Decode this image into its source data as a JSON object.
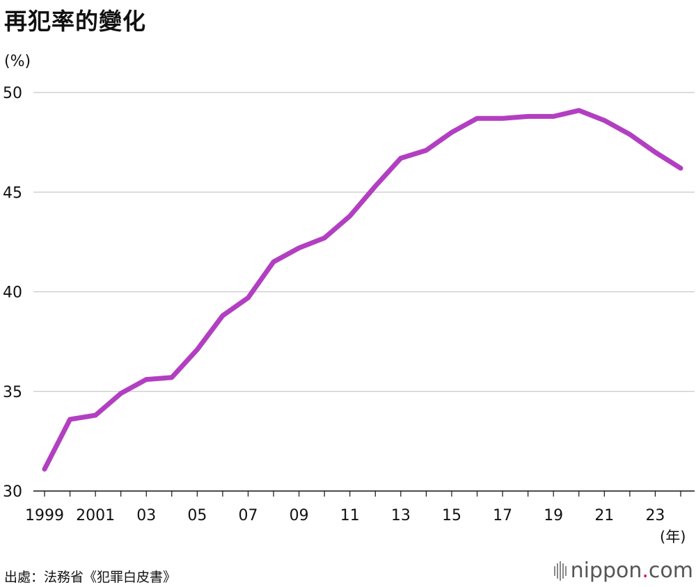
{
  "title": "再犯率的變化",
  "ylabel": "(%)",
  "xunit": "(年)",
  "source": "出處：法務省《犯罪白皮書》",
  "logo": {
    "text_main": "nippon",
    "dot": ".",
    "text_tail": "com"
  },
  "chart_data": {
    "type": "line",
    "title": "再犯率的變化",
    "ylabel": "(%)",
    "xlabel": "(年)",
    "ylim": [
      30,
      50
    ],
    "yticks": [
      30,
      35,
      40,
      45,
      50
    ],
    "grid": true,
    "x": [
      1999,
      2000,
      2001,
      2002,
      2003,
      2004,
      2005,
      2006,
      2007,
      2008,
      2009,
      2010,
      2011,
      2012,
      2013,
      2014,
      2015,
      2016,
      2017,
      2018,
      2019,
      2020,
      2021,
      2022,
      2023,
      2024
    ],
    "xtick_labels": [
      {
        "x": 1999,
        "label": "1999"
      },
      {
        "x": 2001,
        "label": "2001"
      },
      {
        "x": 2003,
        "label": "03"
      },
      {
        "x": 2005,
        "label": "05"
      },
      {
        "x": 2007,
        "label": "07"
      },
      {
        "x": 2009,
        "label": "09"
      },
      {
        "x": 2011,
        "label": "11"
      },
      {
        "x": 2013,
        "label": "13"
      },
      {
        "x": 2015,
        "label": "15"
      },
      {
        "x": 2017,
        "label": "17"
      },
      {
        "x": 2019,
        "label": "19"
      },
      {
        "x": 2021,
        "label": "21"
      },
      {
        "x": 2023,
        "label": "23"
      }
    ],
    "series": [
      {
        "color": "#b23fc1",
        "values": [
          31.1,
          33.6,
          33.8,
          34.9,
          35.6,
          35.7,
          37.1,
          38.8,
          39.7,
          41.5,
          42.2,
          42.7,
          43.8,
          45.3,
          46.7,
          47.1,
          48.0,
          48.7,
          48.7,
          48.8,
          48.8,
          49.1,
          48.6,
          47.9,
          47.0,
          46.2
        ]
      }
    ]
  }
}
